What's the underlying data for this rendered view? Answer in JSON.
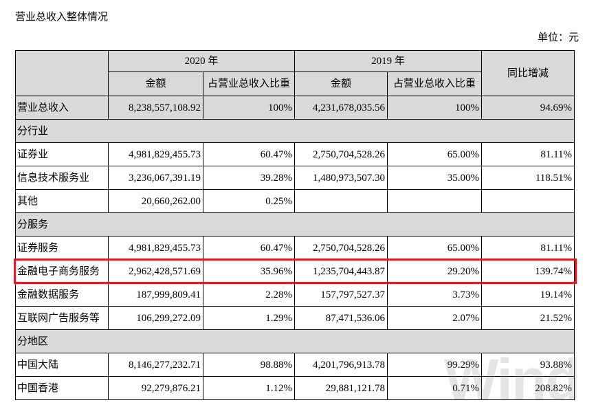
{
  "title": "营业总收入整体情况",
  "unit": "单位：元",
  "header": {
    "year_2020": "2020 年",
    "year_2019": "2019 年",
    "change": "同比增减",
    "amount_2020": "金额",
    "share_2020": "占营业总收入比重",
    "amount_2019": "金额",
    "share_2019": "占营业总收入比重"
  },
  "total": {
    "label": "营业总收入",
    "amount_2020": "8,238,557,108.92",
    "share_2020": "100%",
    "amount_2019": "4,231,678,035.56",
    "share_2019": "100%",
    "change": "94.69%"
  },
  "groups": [
    {
      "label": "分行业",
      "rows": [
        {
          "label": "证券业",
          "amount_2020": "4,981,829,455.73",
          "share_2020": "60.47%",
          "amount_2019": "2,750,704,528.26",
          "share_2019": "65.00%",
          "change": "81.11%"
        },
        {
          "label": "信息技术服务业",
          "amount_2020": "3,236,067,391.19",
          "share_2020": "39.28%",
          "amount_2019": "1,480,973,507.30",
          "share_2019": "35.00%",
          "change": "118.51%"
        },
        {
          "label": "其他",
          "amount_2020": "20,660,262.00",
          "share_2020": "0.25%",
          "amount_2019": "",
          "share_2019": "",
          "change": ""
        }
      ]
    },
    {
      "label": "分服务",
      "rows": [
        {
          "label": "证券服务",
          "amount_2020": "4,981,829,455.73",
          "share_2020": "60.47%",
          "amount_2019": "2,750,704,528.26",
          "share_2019": "65.00%",
          "change": "81.11%"
        },
        {
          "label": "金融电子商务服务",
          "amount_2020": "2,962,428,571.69",
          "share_2020": "35.96%",
          "amount_2019": "1,235,704,443.87",
          "share_2019": "29.20%",
          "change": "139.74%",
          "highlighted": true
        },
        {
          "label": "金融数据服务",
          "amount_2020": "187,999,809.41",
          "share_2020": "2.28%",
          "amount_2019": "157,797,527.37",
          "share_2019": "3.73%",
          "change": "19.14%"
        },
        {
          "label": "互联网广告服务等",
          "amount_2020": "106,299,272.09",
          "share_2020": "1.29%",
          "amount_2019": "87,471,536.06",
          "share_2019": "2.07%",
          "change": "21.52%"
        }
      ]
    },
    {
      "label": "分地区",
      "rows": [
        {
          "label": "中国大陆",
          "amount_2020": "8,146,277,232.71",
          "share_2020": "98.88%",
          "amount_2019": "4,201,796,913.78",
          "share_2019": "99.29%",
          "change": "93.88%"
        },
        {
          "label": "中国香港",
          "amount_2020": "92,279,876.21",
          "share_2020": "1.12%",
          "amount_2019": "29,881,121.78",
          "share_2019": "0.71%",
          "change": "208.82%"
        }
      ]
    }
  ],
  "colors": {
    "header_bg": "#d9d9d9",
    "grid": "#000000",
    "highlight": "#e31c23",
    "watermark": "#8c8c8c"
  },
  "watermark": "Wind"
}
